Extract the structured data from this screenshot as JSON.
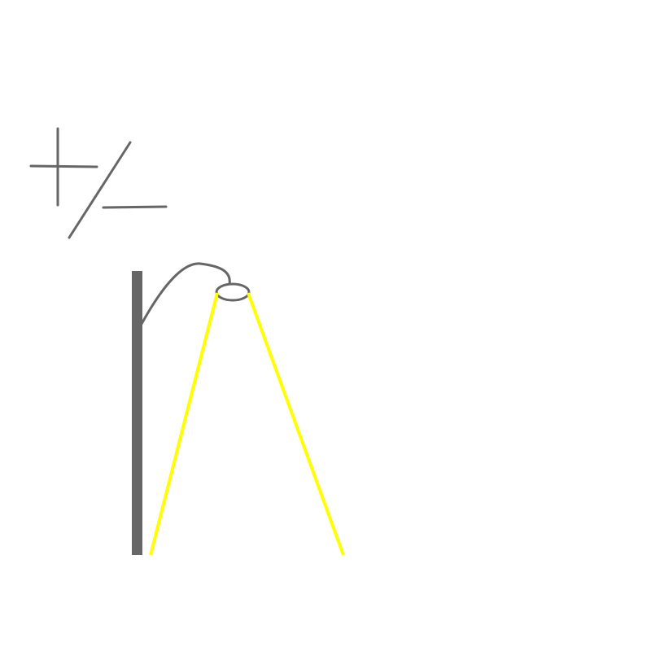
{
  "drawing": {
    "stroke_color": "#666666",
    "light_color": "#ffff00",
    "background_color": "#ffffff",
    "elements": [
      "plus-minus-symbol",
      "street-lamp",
      "light-beam"
    ]
  }
}
